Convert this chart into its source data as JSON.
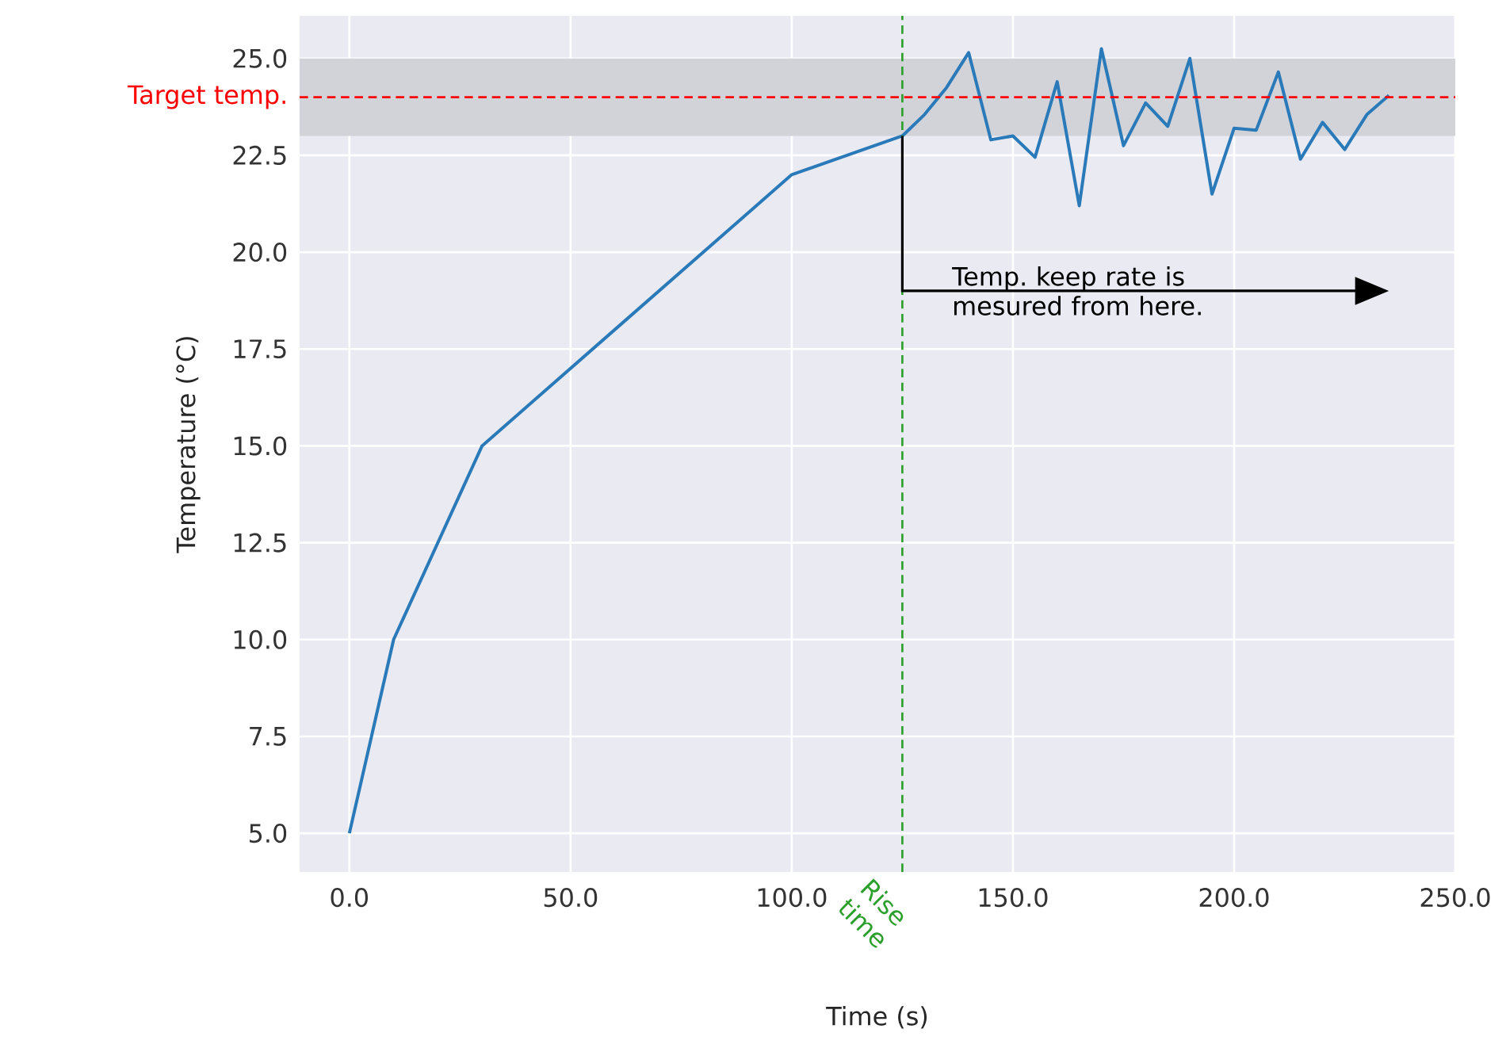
{
  "chart_data": {
    "type": "line",
    "xlabel": "Time (s)",
    "ylabel": "Temperature (°C)",
    "x": [
      0,
      10,
      30,
      100,
      125,
      130,
      135,
      140,
      145,
      150,
      155,
      160,
      165,
      170,
      175,
      180,
      185,
      190,
      195,
      200,
      205,
      210,
      215,
      220,
      225,
      230,
      235
    ],
    "series": [
      {
        "color": "#2a7ab9",
        "values": [
          5,
          10,
          15,
          22,
          23.0,
          23.55,
          24.25,
          25.15,
          22.9,
          23.0,
          22.45,
          24.4,
          21.2,
          25.25,
          22.75,
          23.85,
          23.25,
          25.0,
          21.5,
          23.2,
          23.15,
          24.65,
          22.4,
          23.35,
          22.65,
          23.55,
          24.05
        ]
      }
    ],
    "xlim": [
      -11.25,
      250
    ],
    "ylim": [
      4.0,
      26.1
    ],
    "xticks": [
      {
        "value": 0,
        "label": "0.0"
      },
      {
        "value": 50,
        "label": "50.0"
      },
      {
        "value": 100,
        "label": "100.0"
      },
      {
        "value": 150,
        "label": "150.0"
      },
      {
        "value": 200,
        "label": "200.0"
      },
      {
        "value": 250,
        "label": "250.0"
      }
    ],
    "yticks": [
      {
        "value": 5,
        "label": "5.0"
      },
      {
        "value": 7.5,
        "label": "7.5"
      },
      {
        "value": 10,
        "label": "10.0"
      },
      {
        "value": 12.5,
        "label": "12.5"
      },
      {
        "value": 15,
        "label": "15.0"
      },
      {
        "value": 17.5,
        "label": "17.5"
      },
      {
        "value": 20,
        "label": "20.0"
      },
      {
        "value": 22.5,
        "label": "22.5"
      },
      {
        "value": 25,
        "label": "25.0"
      }
    ],
    "grid": true,
    "line_style": "solid",
    "bands": [
      {
        "axis": "y",
        "from": 23,
        "to": 25,
        "color": "#d2d3d9"
      }
    ],
    "ref_lines": [
      {
        "axis": "y",
        "value": 24,
        "label": "Target temp.",
        "color": "#ff0000",
        "line_style": "dashed"
      },
      {
        "axis": "x",
        "value": 125,
        "label": "Rise time",
        "color": "#2ca02c",
        "line_style": "dashed"
      }
    ],
    "annotations": [
      {
        "text": "Temp. keep rate is mesured from here.",
        "x": 125,
        "y": 19
      }
    ]
  }
}
